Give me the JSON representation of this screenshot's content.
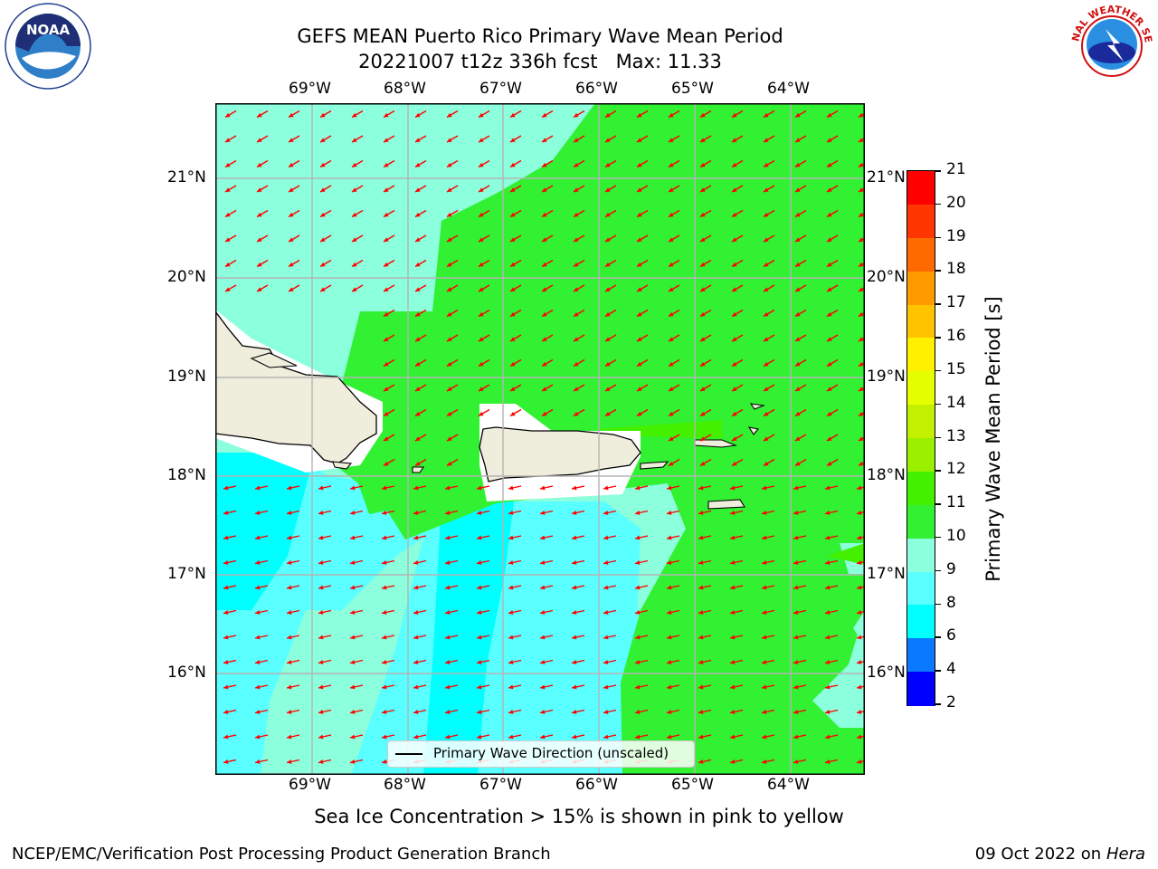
{
  "header": {
    "title": "GEFS MEAN Puerto Rico Primary Wave Mean Period",
    "run": "20221007 t12z 336h fcst",
    "max": "Max: 11.33",
    "left_logo_text": "NOAA",
    "right_logo_text": "NATIONAL WEATHER SERVICE"
  },
  "map": {
    "lon_labels": [
      "69°W",
      "68°W",
      "67°W",
      "66°W",
      "65°W",
      "64°W"
    ],
    "lat_labels": [
      "21°N",
      "20°N",
      "19°N",
      "18°N",
      "17°N",
      "16°N"
    ],
    "legend_label": "Primary Wave Direction (unscaled)",
    "arrow_color": "#ff0000",
    "land_color": "#efeddc"
  },
  "colorbar": {
    "title": "Primary Wave Mean Period [s]",
    "ticks": [
      "21",
      "20",
      "19",
      "18",
      "17",
      "16",
      "15",
      "14",
      "13",
      "12",
      "11",
      "10",
      "9",
      "8",
      "6",
      "4",
      "2"
    ],
    "colors": [
      "#ff0000",
      "#ff3600",
      "#ff6a00",
      "#ff9b00",
      "#ffc300",
      "#fff000",
      "#e5ff00",
      "#c3f000",
      "#9af000",
      "#42f000",
      "#32f032",
      "#8cffdc",
      "#5affff",
      "#00ffff",
      "#0a78ff",
      "#0000ff"
    ]
  },
  "footer": {
    "note": "Sea Ice Concentration > 15% is shown in pink to yellow",
    "branch": "NCEP/EMC/Verification Post Processing Product Generation Branch",
    "date": "09 Oct 2022 on",
    "machine": "Hera"
  }
}
